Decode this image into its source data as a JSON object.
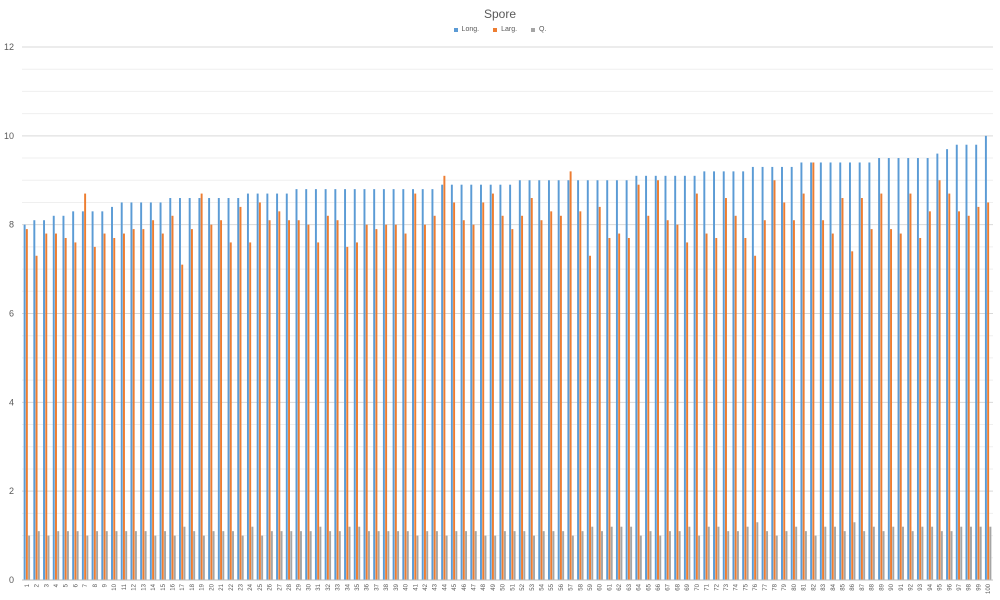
{
  "chart_data": {
    "type": "bar",
    "title": "Spore",
    "xlabel": "",
    "ylabel": "",
    "ylim": [
      0,
      12
    ],
    "yticks": [
      0,
      2,
      4,
      6,
      8,
      10,
      12
    ],
    "grid": true,
    "legend_position": "top",
    "categories": [
      "1",
      "2",
      "3",
      "4",
      "5",
      "6",
      "7",
      "8",
      "9",
      "10",
      "11",
      "12",
      "13",
      "14",
      "15",
      "16",
      "17",
      "18",
      "19",
      "20",
      "21",
      "22",
      "23",
      "24",
      "25",
      "26",
      "27",
      "28",
      "29",
      "30",
      "31",
      "32",
      "33",
      "34",
      "35",
      "36",
      "37",
      "38",
      "39",
      "40",
      "41",
      "42",
      "43",
      "44",
      "45",
      "46",
      "47",
      "48",
      "49",
      "50",
      "51",
      "52",
      "53",
      "54",
      "55",
      "56",
      "57",
      "58",
      "59",
      "60",
      "61",
      "62",
      "63",
      "64",
      "65",
      "66",
      "67",
      "68",
      "69",
      "70",
      "71",
      "72",
      "73",
      "74",
      "75",
      "76",
      "77",
      "78",
      "79",
      "80",
      "81",
      "82",
      "83",
      "84",
      "85",
      "86",
      "87",
      "88",
      "89",
      "90",
      "91",
      "92",
      "93",
      "94",
      "95",
      "96",
      "97",
      "98",
      "99",
      "100"
    ],
    "series": [
      {
        "name": "Long.",
        "color": "#5B9BD5",
        "values": [
          8.0,
          8.1,
          8.1,
          8.2,
          8.2,
          8.3,
          8.3,
          8.3,
          8.3,
          8.4,
          8.5,
          8.5,
          8.5,
          8.5,
          8.5,
          8.6,
          8.6,
          8.6,
          8.6,
          8.6,
          8.6,
          8.6,
          8.6,
          8.7,
          8.7,
          8.7,
          8.7,
          8.7,
          8.8,
          8.8,
          8.8,
          8.8,
          8.8,
          8.8,
          8.8,
          8.8,
          8.8,
          8.8,
          8.8,
          8.8,
          8.8,
          8.8,
          8.8,
          8.9,
          8.9,
          8.9,
          8.9,
          8.9,
          8.9,
          8.9,
          8.9,
          9.0,
          9.0,
          9.0,
          9.0,
          9.0,
          9.0,
          9.0,
          9.0,
          9.0,
          9.0,
          9.0,
          9.0,
          9.1,
          9.1,
          9.1,
          9.1,
          9.1,
          9.1,
          9.1,
          9.2,
          9.2,
          9.2,
          9.2,
          9.2,
          9.3,
          9.3,
          9.3,
          9.3,
          9.3,
          9.4,
          9.4,
          9.4,
          9.4,
          9.4,
          9.4,
          9.4,
          9.4,
          9.5,
          9.5,
          9.5,
          9.5,
          9.5,
          9.5,
          9.6,
          9.7,
          9.8,
          9.8,
          9.8,
          10.0
        ]
      },
      {
        "name": "Larg.",
        "color": "#ED7D31",
        "values": [
          7.9,
          7.3,
          7.8,
          7.8,
          7.7,
          7.6,
          8.7,
          7.5,
          7.8,
          7.7,
          7.8,
          7.9,
          7.9,
          8.1,
          7.8,
          8.2,
          7.1,
          7.9,
          8.7,
          8.0,
          8.1,
          7.6,
          8.4,
          7.6,
          8.5,
          8.1,
          8.3,
          8.1,
          8.1,
          8.0,
          7.6,
          8.2,
          8.1,
          7.5,
          7.6,
          8.0,
          7.9,
          8.0,
          8.0,
          7.8,
          8.7,
          8.0,
          8.2,
          9.1,
          8.5,
          8.1,
          8.0,
          8.5,
          8.7,
          8.2,
          7.9,
          8.2,
          8.6,
          8.1,
          8.3,
          8.2,
          9.2,
          8.3,
          7.3,
          8.4,
          7.7,
          7.8,
          7.7,
          8.9,
          8.2,
          9.0,
          8.1,
          8.0,
          7.6,
          8.7,
          7.8,
          7.7,
          8.6,
          8.2,
          7.7,
          7.3,
          8.1,
          9.0,
          8.5,
          8.1,
          8.7,
          9.4,
          8.1,
          7.8,
          8.6,
          7.4,
          8.6,
          7.9,
          8.7,
          7.9,
          7.8,
          8.7,
          7.7,
          8.3,
          9.0,
          8.7,
          8.3,
          8.2,
          8.4,
          8.5
        ]
      },
      {
        "name": "Q.",
        "color": "#A5A5A5",
        "values": [
          1.0,
          1.1,
          1.0,
          1.1,
          1.1,
          1.1,
          1.0,
          1.1,
          1.1,
          1.1,
          1.1,
          1.1,
          1.1,
          1.0,
          1.1,
          1.0,
          1.2,
          1.1,
          1.0,
          1.1,
          1.1,
          1.1,
          1.0,
          1.2,
          1.0,
          1.1,
          1.1,
          1.1,
          1.1,
          1.1,
          1.2,
          1.1,
          1.1,
          1.2,
          1.2,
          1.1,
          1.1,
          1.1,
          1.1,
          1.1,
          1.0,
          1.1,
          1.1,
          1.0,
          1.1,
          1.1,
          1.1,
          1.0,
          1.0,
          1.1,
          1.1,
          1.1,
          1.0,
          1.1,
          1.1,
          1.1,
          1.0,
          1.1,
          1.2,
          1.1,
          1.2,
          1.2,
          1.2,
          1.0,
          1.1,
          1.0,
          1.1,
          1.1,
          1.2,
          1.0,
          1.2,
          1.2,
          1.1,
          1.1,
          1.2,
          1.3,
          1.1,
          1.0,
          1.1,
          1.2,
          1.1,
          1.0,
          1.2,
          1.2,
          1.1,
          1.3,
          1.1,
          1.2,
          1.1,
          1.2,
          1.2,
          1.1,
          1.2,
          1.2,
          1.1,
          1.1,
          1.2,
          1.2,
          1.2,
          1.2
        ]
      }
    ]
  }
}
